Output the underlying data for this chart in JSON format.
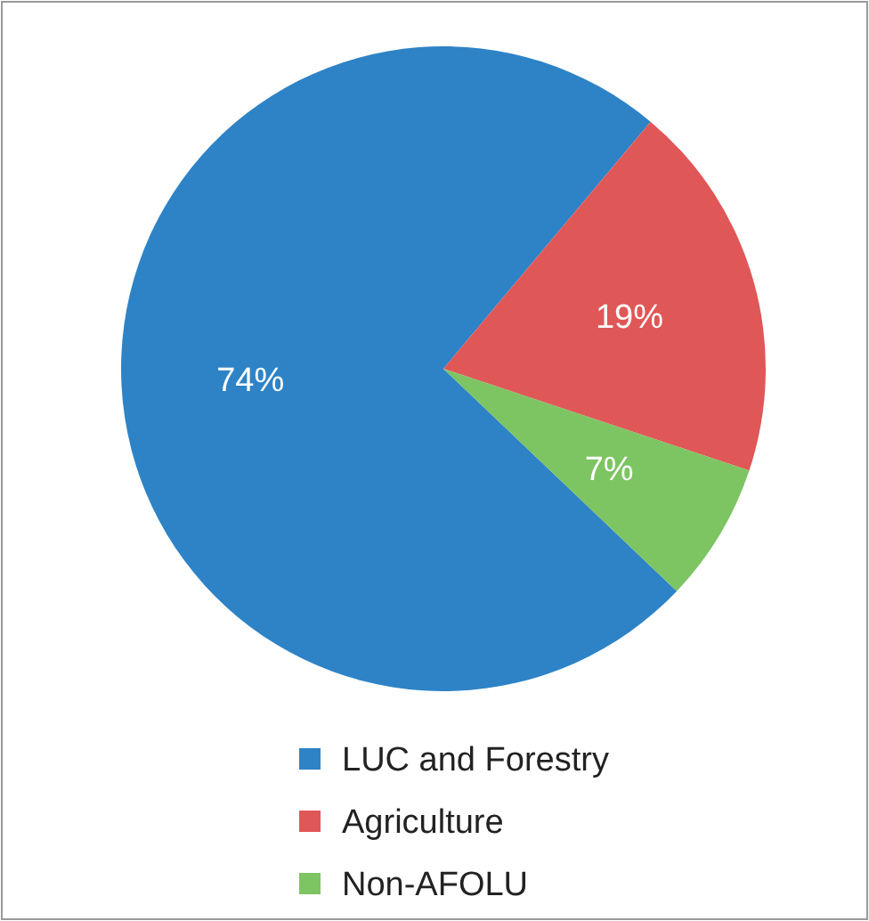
{
  "chart_data": {
    "type": "pie",
    "categories": [
      "LUC and Forestry",
      "Agriculture",
      "Non-AFOLU"
    ],
    "values": [
      74,
      19,
      7
    ],
    "colors": [
      "#2e83c6",
      "#e05757",
      "#7dc462"
    ],
    "value_labels": [
      "74%",
      "19%",
      "7%"
    ],
    "legend": "bottom"
  }
}
